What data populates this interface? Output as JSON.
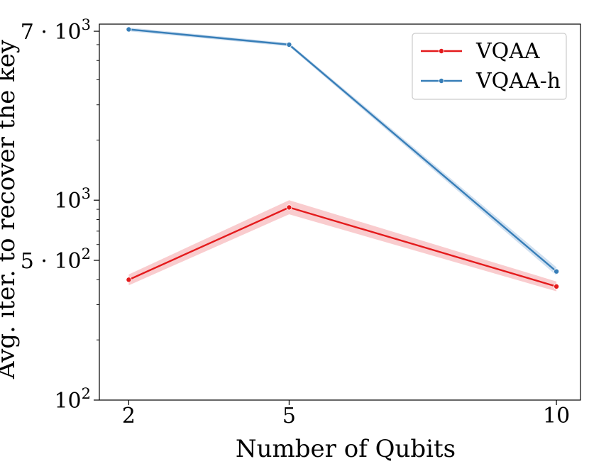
{
  "chart_data": {
    "type": "line",
    "title": "",
    "xlabel": "Number of Qubits",
    "ylabel": "Avg. iter. to recover the key",
    "yscale": "log",
    "ylim": [
      100,
      7600
    ],
    "x_categories": [
      "2",
      "5",
      "10"
    ],
    "y_ticks": [
      {
        "value": 100,
        "base": "10",
        "exp": "2",
        "mantissa": ""
      },
      {
        "value": 500,
        "base": "10",
        "exp": "2",
        "mantissa": "5 · "
      },
      {
        "value": 1000,
        "base": "10",
        "exp": "3",
        "mantissa": ""
      },
      {
        "value": 7000,
        "base": "10",
        "exp": "3",
        "mantissa": "7 · "
      }
    ],
    "legend_position": "top-right",
    "series": [
      {
        "name": "VQAA",
        "color": "#e41a1c",
        "band_color": "#f4a3a6",
        "values": [
          400,
          920,
          370
        ],
        "lower": [
          375,
          850,
          350
        ],
        "upper": [
          425,
          1000,
          392
        ]
      },
      {
        "name": "VQAA-h",
        "color": "#377eb8",
        "band_color": "#a9c6e3",
        "values": [
          7150,
          6000,
          440
        ],
        "lower": [
          7000,
          5880,
          420
        ],
        "upper": [
          7300,
          6120,
          462
        ]
      }
    ]
  }
}
